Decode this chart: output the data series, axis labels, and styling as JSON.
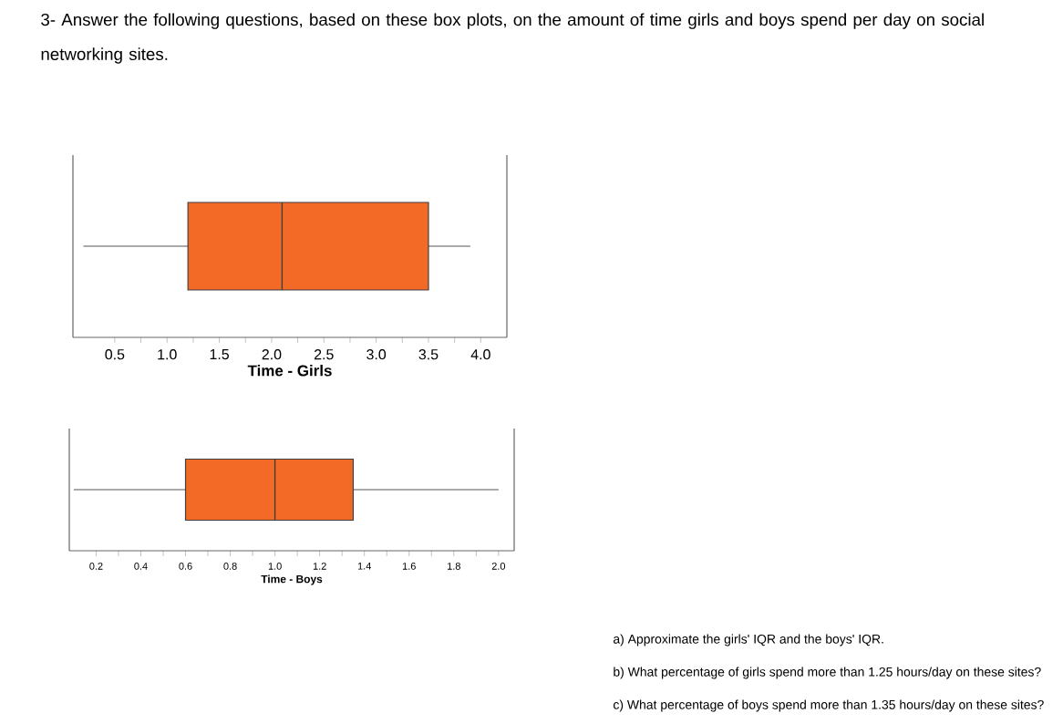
{
  "chart_data": [
    {
      "type": "box",
      "orientation": "horizontal",
      "title": "3- Answer the following questions, based on these box plots, on the amount of time girls and boys spend per day on social networking sites.",
      "xlabel": "Time - Girls",
      "categories": [
        null
      ],
      "color": "#f26a26",
      "boxes": [
        {
          "low": 0.2,
          "q1": 1.2,
          "median": 2.1,
          "q3": 3.5,
          "high": 3.9
        }
      ],
      "xlim": [
        0.1,
        4.25
      ],
      "xticks": [
        0.5,
        {
          "value": 1,
          "label": "1.0"
        },
        1.5,
        {
          "value": 2,
          "label": "2.0"
        },
        2.5,
        {
          "value": 3,
          "label": "3.0"
        },
        3.5,
        {
          "value": 4,
          "label": "4.0"
        }
      ],
      "tick_labels": "x"
    },
    {
      "type": "box",
      "orientation": "horizontal",
      "xlabel": "Time - Boys",
      "categories": [
        null
      ],
      "color": "#f26a26",
      "boxes": [
        {
          "low": 0.1,
          "q1": 0.6,
          "median": 1.0,
          "q3": 1.35,
          "high": 2.0
        }
      ],
      "xlim": [
        0.08,
        2.07
      ],
      "xticks": [
        0.2,
        0.4,
        0.6,
        0.8,
        {
          "value": 1,
          "label": "1.0"
        },
        1.2,
        1.4,
        1.6,
        1.8,
        {
          "value": 2,
          "label": "2.0"
        }
      ],
      "tick_labels": "x",
      "annotations": [
        "a)  Approximate the girls' IQR and the boys' IQR.",
        "b)  What percentage of girls spend more than 1.25 hours/day on these sites?",
        "c)  What percentage of boys spend more than 1.35 hours/day on these sites?"
      ]
    }
  ]
}
